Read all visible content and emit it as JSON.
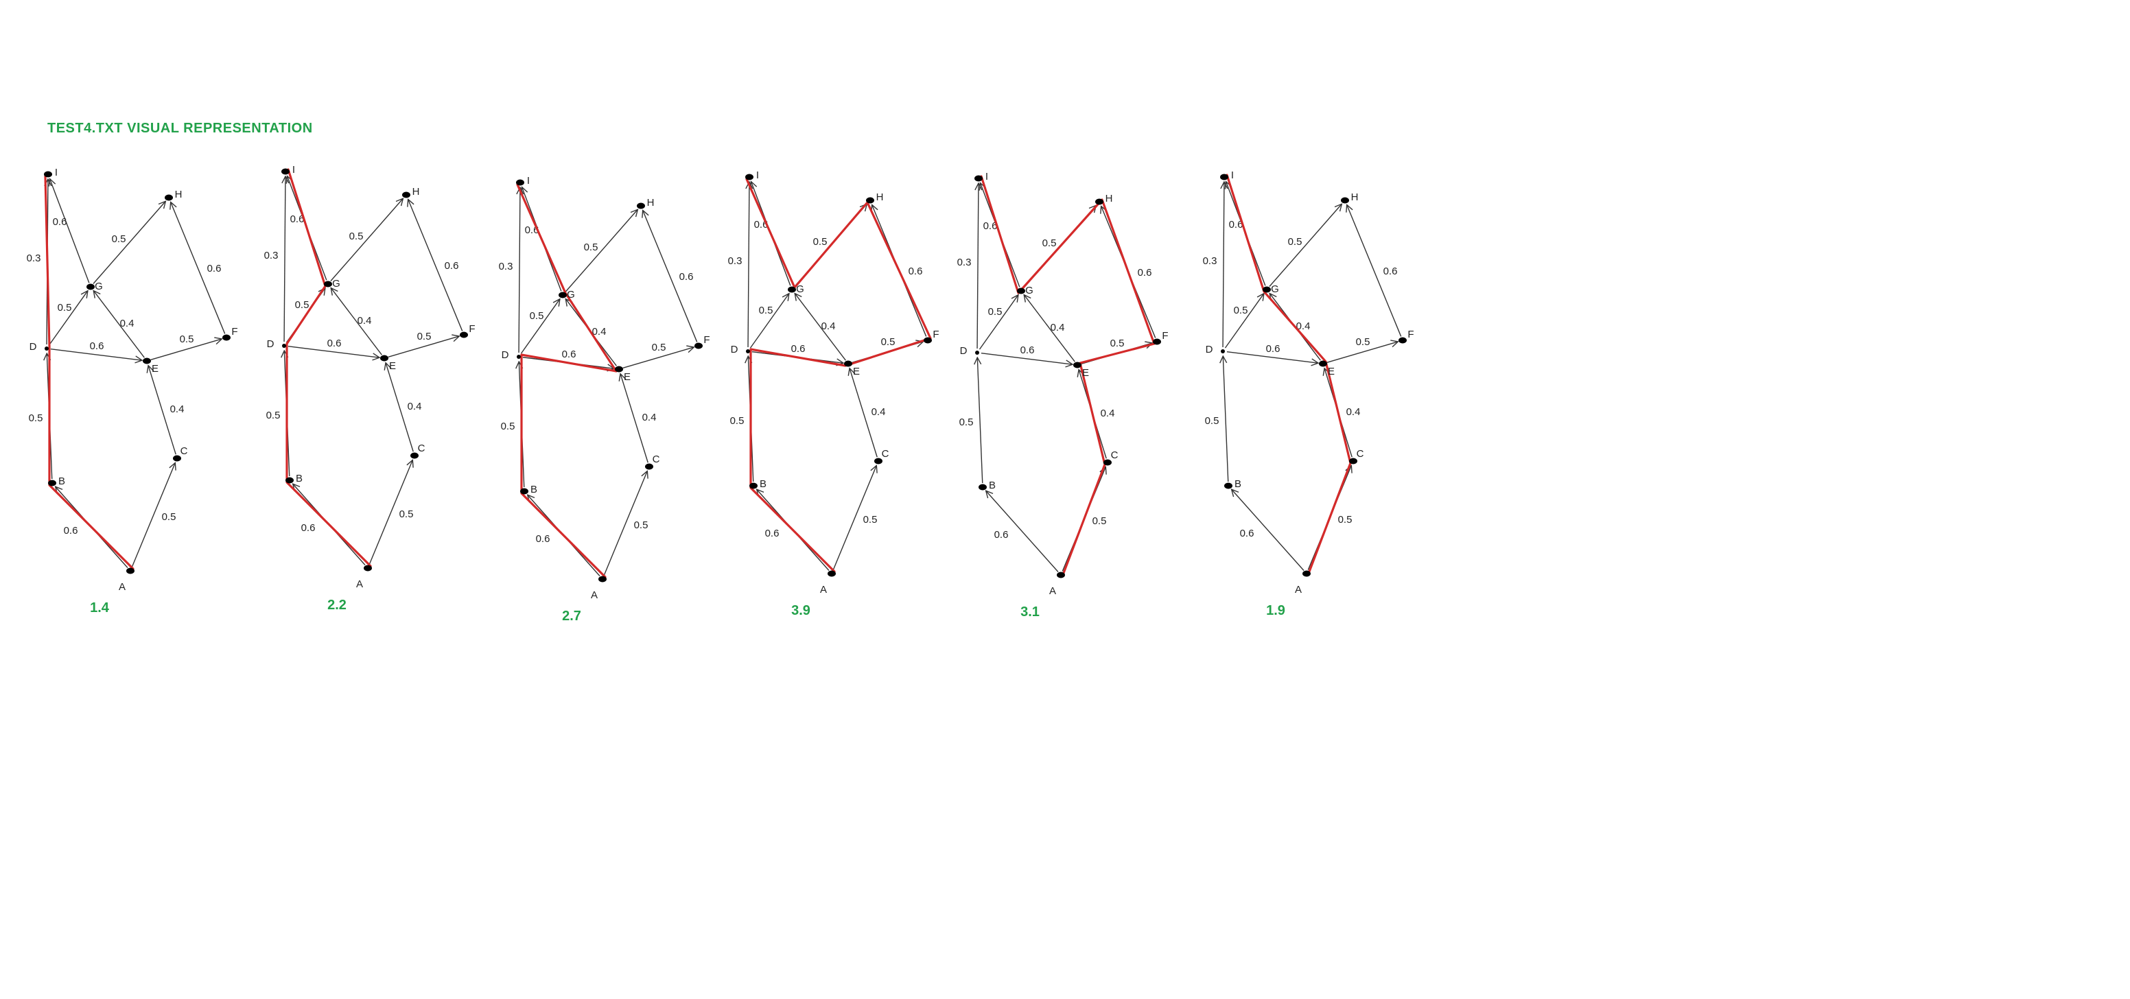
{
  "title": "TEST4.TXT VISUAL REPRESENTATION",
  "colors": {
    "title": "#22a14a",
    "cost": "#22a14a",
    "path": "#d42a2a",
    "edge": "#333333",
    "node": "#000000"
  },
  "nodes": [
    "A",
    "B",
    "C",
    "D",
    "E",
    "F",
    "G",
    "H",
    "I"
  ],
  "edges": [
    {
      "from": "A",
      "to": "B",
      "weight": "0.6"
    },
    {
      "from": "A",
      "to": "C",
      "weight": "0.5"
    },
    {
      "from": "B",
      "to": "D",
      "weight": "0.5"
    },
    {
      "from": "C",
      "to": "E",
      "weight": "0.4"
    },
    {
      "from": "D",
      "to": "I",
      "weight": "0.3"
    },
    {
      "from": "D",
      "to": "G",
      "weight": "0.5"
    },
    {
      "from": "D",
      "to": "E",
      "weight": "0.6"
    },
    {
      "from": "E",
      "to": "G",
      "weight": "0.4"
    },
    {
      "from": "E",
      "to": "F",
      "weight": "0.5"
    },
    {
      "from": "G",
      "to": "I",
      "weight": "0.6"
    },
    {
      "from": "G",
      "to": "H",
      "weight": "0.5"
    },
    {
      "from": "F",
      "to": "H",
      "weight": "0.6"
    }
  ],
  "panels": [
    {
      "cost": "1.4",
      "path": [
        "A",
        "B",
        "D",
        "I"
      ]
    },
    {
      "cost": "2.2",
      "path": [
        "A",
        "B",
        "D",
        "G",
        "I"
      ]
    },
    {
      "cost": "2.7",
      "path": [
        "A",
        "B",
        "D",
        "E",
        "G",
        "I"
      ]
    },
    {
      "cost": "3.9",
      "path": [
        "A",
        "B",
        "D",
        "E",
        "F",
        "H",
        "G",
        "I"
      ]
    },
    {
      "cost": "3.1",
      "path": [
        "A",
        "C",
        "E",
        "F",
        "H",
        "G",
        "I"
      ]
    },
    {
      "cost": "1.9",
      "path": [
        "A",
        "C",
        "E",
        "G",
        "I"
      ]
    }
  ]
}
